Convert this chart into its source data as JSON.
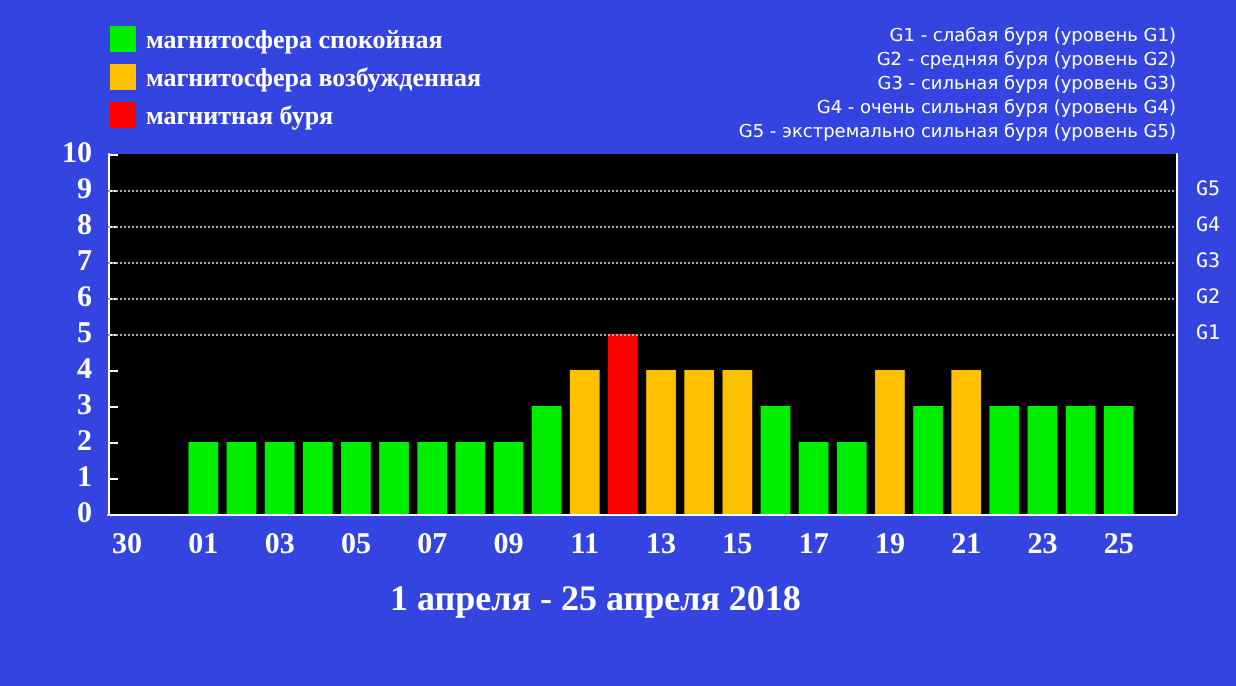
{
  "chart_data": {
    "type": "bar",
    "title": "1 апреля - 25 апреля 2018",
    "categories": [
      "30",
      null,
      "01",
      null,
      "03",
      null,
      "05",
      null,
      "07",
      null,
      "09",
      null,
      "11",
      null,
      "13",
      null,
      "15",
      null,
      "17",
      null,
      "19",
      null,
      "21",
      null,
      "23",
      null,
      "25",
      null
    ],
    "series": [
      {
        "name": "магнитосфера спокойная",
        "color": "#00ee00",
        "values": [
          null,
          null,
          2,
          2,
          2,
          2,
          2,
          2,
          2,
          2,
          2,
          3,
          null,
          null,
          null,
          null,
          null,
          3,
          2,
          2,
          null,
          3,
          null,
          3,
          3,
          3,
          3,
          null
        ]
      },
      {
        "name": "магнитосфера возбужденная",
        "color": "#ffc000",
        "values": [
          null,
          null,
          null,
          null,
          null,
          null,
          null,
          null,
          null,
          null,
          null,
          null,
          4,
          null,
          4,
          4,
          4,
          null,
          null,
          null,
          4,
          null,
          4,
          null,
          null,
          null,
          null,
          null
        ]
      },
      {
        "name": "магнитная буря",
        "color": "#ff0000",
        "values": [
          null,
          null,
          null,
          null,
          null,
          null,
          null,
          null,
          null,
          null,
          null,
          null,
          null,
          5,
          null,
          null,
          null,
          null,
          null,
          null,
          null,
          null,
          null,
          null,
          null,
          null,
          null,
          null
        ]
      }
    ],
    "stacked": true,
    "ylim": [
      0,
      10
    ],
    "yticks": [
      0,
      1,
      2,
      3,
      4,
      5,
      6,
      7,
      8,
      9,
      10
    ],
    "ref_lines": [
      {
        "axis": "y",
        "value": 5,
        "label": "G1",
        "line_style": "dotted"
      },
      {
        "axis": "y",
        "value": 6,
        "label": "G2",
        "line_style": "dotted"
      },
      {
        "axis": "y",
        "value": 7,
        "label": "G3",
        "line_style": "dotted"
      },
      {
        "axis": "y",
        "value": 8,
        "label": "G4",
        "line_style": "dotted"
      },
      {
        "axis": "y",
        "value": 9,
        "label": "G5",
        "line_style": "dotted"
      }
    ],
    "legend": "top left",
    "annotations": [
      "G1 - слабая буря (уровень G1)",
      "G2 - средняя буря (уровень G2)",
      "G3 - сильная буря (уровень G3)",
      "G4 - очень сильная буря (уровень G4)",
      "G5 - экстремально сильная буря (уровень G5)"
    ]
  }
}
